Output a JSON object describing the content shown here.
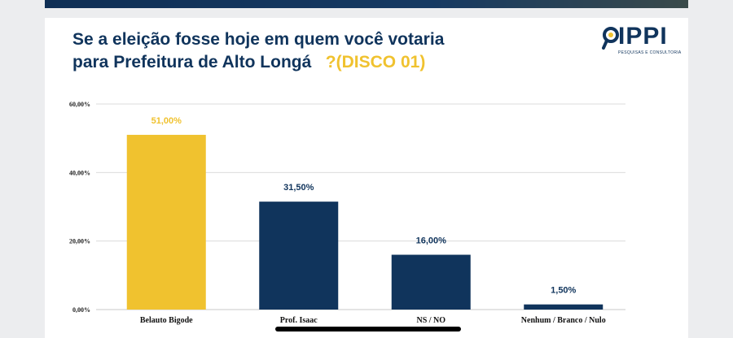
{
  "title_main": "Se a eleição fosse hoje em quem você votaria",
  "title_line2": "para Prefeitura de Alto Longá",
  "title_accent": "?(DISCO 01)",
  "logo": {
    "text": "IPPI",
    "subtitle": "PESQUISAS E CONSULTORIA"
  },
  "colors": {
    "navy": "#10345c",
    "yellow": "#f0c22f",
    "grid": "#dcdcdc"
  },
  "chart_data": {
    "type": "bar",
    "title": "Se a eleição fosse hoje em quem você votaria para Prefeitura de Alto Longá ?(DISCO 01)",
    "categories": [
      "Belauto Bigode",
      "Prof. Isaac",
      "NS / NO",
      "Nenhum / Branco / Nulo"
    ],
    "values": [
      51.0,
      31.5,
      16.0,
      1.5
    ],
    "data_labels": [
      "51,00%",
      "31,50%",
      "16,00%",
      "1,50%"
    ],
    "bar_colors": [
      "#f0c22f",
      "#10345c",
      "#10345c",
      "#10345c"
    ],
    "label_colors": [
      "#f0c22f",
      "#10345c",
      "#10345c",
      "#10345c"
    ],
    "ylim": [
      0,
      60
    ],
    "yticks": [
      0,
      20,
      40,
      60
    ],
    "ytick_labels": [
      "0,00%",
      "20,00%",
      "40,00%",
      "60,00%"
    ],
    "grid": true,
    "legend": "none"
  }
}
